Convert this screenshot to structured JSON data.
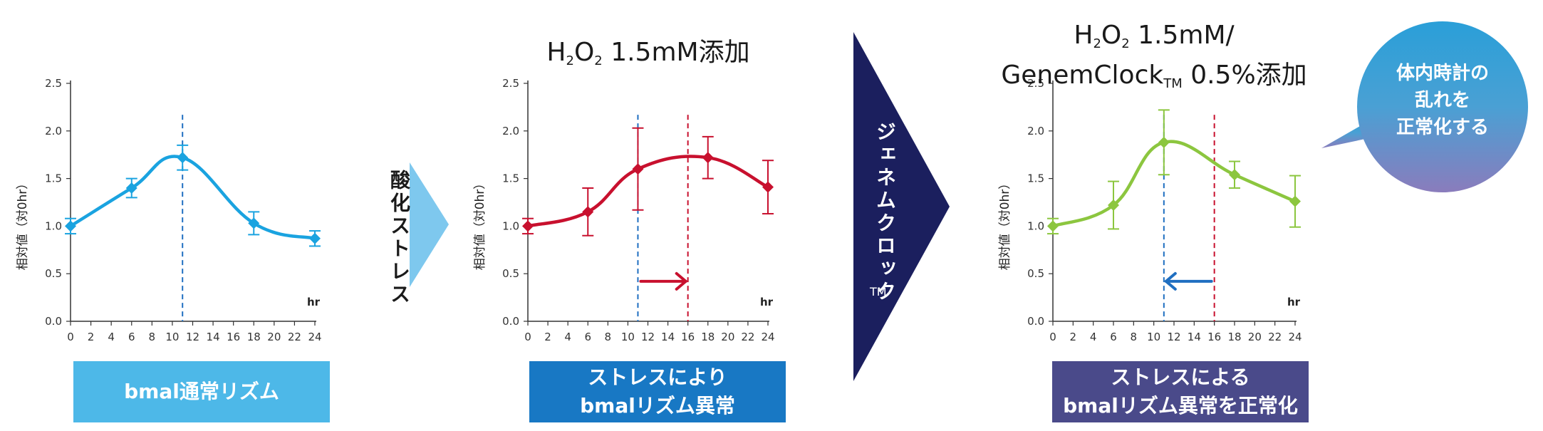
{
  "chart_data": [
    {
      "type": "line",
      "title": "",
      "ylabel": "相対値（対0hr）",
      "xlabel": "hr",
      "ylim": [
        0,
        2.5
      ],
      "xlim": [
        0,
        24
      ],
      "xticks": [
        "0",
        "2",
        "4",
        "6",
        "8",
        "10",
        "12",
        "14",
        "16",
        "18",
        "20",
        "22",
        "24"
      ],
      "yticks": [
        "0.0",
        "0.5",
        "1.0",
        "1.5",
        "2.0",
        "2.5"
      ],
      "series": [
        {
          "color": "#1aa3e0",
          "x": [
            0,
            6,
            11,
            18,
            24
          ],
          "y": [
            1.0,
            1.4,
            1.72,
            1.03,
            0.87
          ],
          "err": [
            0.08,
            0.1,
            0.13,
            0.12,
            0.08
          ]
        }
      ],
      "vlines": [
        {
          "x": 11,
          "color": "#1f6fc1"
        }
      ],
      "arrow": null,
      "caption": "bmal通常リズム",
      "caption_color": "#4db8e8"
    },
    {
      "type": "line",
      "title_line1": "H",
      "title_parts": [
        "H",
        "2",
        "O",
        "2",
        " 1.5mM添加"
      ],
      "ylabel": "相対値（対0hr）",
      "xlabel": "hr",
      "ylim": [
        0,
        2.5
      ],
      "xlim": [
        0,
        24
      ],
      "xticks": [
        "0",
        "2",
        "4",
        "6",
        "8",
        "10",
        "12",
        "14",
        "16",
        "18",
        "20",
        "22",
        "24"
      ],
      "yticks": [
        "0.0",
        "0.5",
        "1.0",
        "1.5",
        "2.0",
        "2.5"
      ],
      "series": [
        {
          "color": "#c8102e",
          "x": [
            0,
            6,
            11,
            18,
            24
          ],
          "y": [
            1.0,
            1.15,
            1.6,
            1.72,
            1.41
          ],
          "err": [
            0.08,
            0.25,
            0.43,
            0.22,
            0.28
          ]
        }
      ],
      "vlines": [
        {
          "x": 11,
          "color": "#1f6fc1"
        },
        {
          "x": 16,
          "color": "#c8102e"
        }
      ],
      "arrow": {
        "from": 11,
        "to": 16,
        "y": 0.42,
        "color": "#c8102e"
      },
      "caption": "ストレスにより\nbmalリズム異常",
      "caption_color": "#1878c4"
    },
    {
      "type": "line",
      "title_parts": [
        "H",
        "2",
        "O",
        "2",
        " 1.5mM/"
      ],
      "title_line2_parts": [
        "GenemClock",
        "TM",
        " 0.5%添加"
      ],
      "ylabel": "相対値（対0hr）",
      "xlabel": "hr",
      "ylim": [
        0,
        2.5
      ],
      "xlim": [
        0,
        24
      ],
      "xticks": [
        "0",
        "2",
        "4",
        "6",
        "8",
        "10",
        "12",
        "14",
        "16",
        "18",
        "20",
        "22",
        "24"
      ],
      "yticks": [
        "0.0",
        "0.5",
        "1.0",
        "1.5",
        "2.0",
        "2.5"
      ],
      "series": [
        {
          "color": "#8cc63f",
          "x": [
            0,
            6,
            11,
            18,
            24
          ],
          "y": [
            1.0,
            1.22,
            1.88,
            1.54,
            1.26
          ],
          "err": [
            0.08,
            0.25,
            0.34,
            0.14,
            0.27
          ]
        }
      ],
      "vlines": [
        {
          "x": 11,
          "color": "#1f6fc1"
        },
        {
          "x": 16,
          "color": "#c8102e"
        }
      ],
      "arrow": {
        "from": 16,
        "to": 11,
        "y": 0.42,
        "color": "#1f6fc1"
      },
      "caption": "ストレスによる\nbmalリズム異常を正常化",
      "caption_color": "#4a4a8a"
    }
  ],
  "arrow1": {
    "label": "酸化ストレス",
    "color": "#7ec8ee"
  },
  "arrow2": {
    "label": "ジェネムクロック",
    "label_sub": "TM",
    "color": "#1b1f5e"
  },
  "bubble": {
    "text": "体内時計の\n乱れを\n正常化する"
  },
  "colors": {
    "bubble_top": "#2a9fd8",
    "bubble_bottom": "#7e7bbf"
  }
}
